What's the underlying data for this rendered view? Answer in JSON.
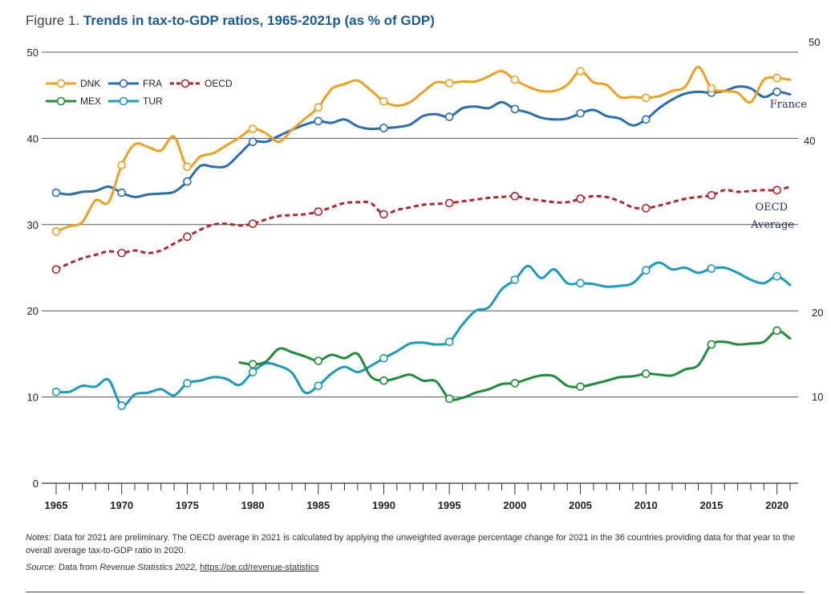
{
  "header": {
    "figure_label": "Figure 1.",
    "title": "Trends in tax-to-GDP ratios, 1965-2021p (as % of GDP)"
  },
  "notes": {
    "prefix": "Notes:",
    "text": "Data for 2021 are preliminary. The OECD average in 2021 is calculated by applying the unweighted average percentage change for 2021 in the 36 countries providing data for that year to the overall average tax-to-GDP ratio in 2020."
  },
  "source": {
    "prefix": "Source:",
    "text_before": "Data from",
    "publication": "Revenue Statistics 2022,",
    "link": "https://oe.cd/revenue-statistics"
  },
  "colors": {
    "DNK": "#f0a020",
    "FRA": "#2a6db3",
    "OECD": "#b5242e",
    "MEX": "#1f8c3c",
    "TUR": "#1b9bbd",
    "axis": "#333333",
    "grid": "#555555"
  },
  "chart_data": {
    "type": "line",
    "x": [
      1965,
      1966,
      1967,
      1968,
      1969,
      1970,
      1971,
      1972,
      1973,
      1974,
      1975,
      1976,
      1977,
      1978,
      1979,
      1980,
      1981,
      1982,
      1983,
      1984,
      1985,
      1986,
      1987,
      1988,
      1989,
      1990,
      1991,
      1992,
      1993,
      1994,
      1995,
      1996,
      1997,
      1998,
      1999,
      2000,
      2001,
      2002,
      2003,
      2004,
      2005,
      2006,
      2007,
      2008,
      2009,
      2010,
      2011,
      2012,
      2013,
      2014,
      2015,
      2016,
      2017,
      2018,
      2019,
      2020,
      2021
    ],
    "xlim": [
      1965,
      2021
    ],
    "ylim": [
      0,
      50
    ],
    "y_ticks_left": [
      0,
      10,
      20,
      30,
      40,
      50
    ],
    "y_ticks_right": [
      10,
      20,
      40,
      50
    ],
    "x_tick_labels": [
      1965,
      1970,
      1975,
      1980,
      1985,
      1990,
      1995,
      2000,
      2005,
      2010,
      2015,
      2020
    ],
    "marker_years": [
      1965,
      1970,
      1975,
      1980,
      1985,
      1990,
      1995,
      2000,
      2005,
      2010,
      2015,
      2020
    ],
    "series": [
      {
        "name": "DNK",
        "dashed": false,
        "values": [
          29.2,
          29.8,
          30.3,
          32.8,
          32.6,
          36.9,
          39.3,
          39.0,
          38.6,
          40.2,
          36.7,
          37.9,
          38.3,
          39.2,
          40.1,
          41.1,
          40.6,
          39.6,
          41.0,
          42.3,
          43.6,
          45.7,
          46.3,
          46.7,
          45.6,
          44.3,
          43.8,
          44.2,
          45.4,
          46.5,
          46.4,
          46.6,
          46.6,
          47.2,
          47.8,
          46.8,
          46.0,
          45.5,
          45.5,
          46.2,
          47.8,
          46.5,
          46.2,
          44.8,
          44.8,
          44.7,
          44.9,
          45.5,
          46.0,
          48.3,
          45.8,
          45.5,
          45.3,
          44.2,
          46.8,
          47.0,
          46.8
        ]
      },
      {
        "name": "FRA",
        "dashed": false,
        "values": [
          33.7,
          33.5,
          33.8,
          33.9,
          34.4,
          33.7,
          33.2,
          33.5,
          33.6,
          33.8,
          35.0,
          36.8,
          36.7,
          36.8,
          38.2,
          39.6,
          39.6,
          40.3,
          41.0,
          41.6,
          42.0,
          41.8,
          42.2,
          41.4,
          41.1,
          41.2,
          41.3,
          41.6,
          42.6,
          42.8,
          42.5,
          43.5,
          43.7,
          43.5,
          44.2,
          43.4,
          43.0,
          42.4,
          42.2,
          42.3,
          42.9,
          43.3,
          42.6,
          42.3,
          41.5,
          42.2,
          43.5,
          44.5,
          45.2,
          45.4,
          45.3,
          45.5,
          46.0,
          45.8,
          44.8,
          45.4,
          45.1
        ]
      },
      {
        "name": "OECD",
        "dashed": true,
        "values": [
          24.8,
          25.5,
          26.1,
          26.5,
          26.9,
          26.7,
          27.0,
          26.7,
          27.0,
          27.8,
          28.6,
          29.4,
          30.0,
          30.1,
          29.9,
          30.1,
          30.6,
          31.0,
          31.1,
          31.2,
          31.5,
          32.0,
          32.5,
          32.6,
          32.5,
          31.2,
          31.7,
          32.0,
          32.3,
          32.4,
          32.5,
          32.7,
          32.9,
          33.1,
          33.2,
          33.3,
          33.0,
          32.8,
          32.6,
          32.6,
          33.0,
          33.3,
          33.2,
          32.7,
          32.0,
          31.9,
          32.2,
          32.6,
          33.0,
          33.2,
          33.4,
          34.0,
          33.8,
          33.9,
          34.0,
          34.0,
          34.4
        ]
      },
      {
        "name": "MEX",
        "dashed": false,
        "values": [
          null,
          null,
          null,
          null,
          null,
          null,
          null,
          null,
          null,
          null,
          null,
          null,
          null,
          null,
          14.0,
          13.8,
          14.1,
          15.6,
          15.2,
          14.7,
          14.2,
          14.9,
          14.5,
          15.0,
          12.4,
          11.9,
          12.2,
          12.6,
          11.9,
          11.8,
          9.8,
          9.9,
          10.5,
          10.9,
          11.5,
          11.6,
          12.1,
          12.5,
          12.4,
          11.3,
          11.2,
          11.5,
          11.9,
          12.3,
          12.4,
          12.7,
          12.6,
          12.5,
          13.2,
          13.7,
          16.1,
          16.4,
          16.1,
          16.2,
          16.4,
          17.7,
          16.8
        ]
      },
      {
        "name": "TUR",
        "dashed": false,
        "values": [
          10.6,
          10.6,
          11.3,
          11.2,
          12.0,
          9.0,
          10.3,
          10.5,
          10.9,
          10.2,
          11.6,
          11.9,
          12.3,
          12.1,
          11.4,
          12.9,
          13.9,
          13.6,
          12.8,
          10.5,
          11.3,
          12.7,
          13.5,
          12.9,
          13.6,
          14.5,
          15.3,
          16.2,
          16.3,
          16.1,
          16.4,
          18.4,
          20.0,
          20.4,
          22.5,
          23.6,
          25.2,
          23.8,
          24.8,
          23.2,
          23.2,
          23.1,
          22.8,
          22.9,
          23.2,
          24.7,
          25.6,
          24.8,
          25.0,
          24.4,
          24.9,
          25.0,
          24.4,
          23.6,
          23.2,
          24.0,
          23.0
        ]
      }
    ],
    "annotations": {
      "right_France": "France",
      "right_OECD_1": "OECD",
      "right_OECD_2": "Average"
    }
  }
}
